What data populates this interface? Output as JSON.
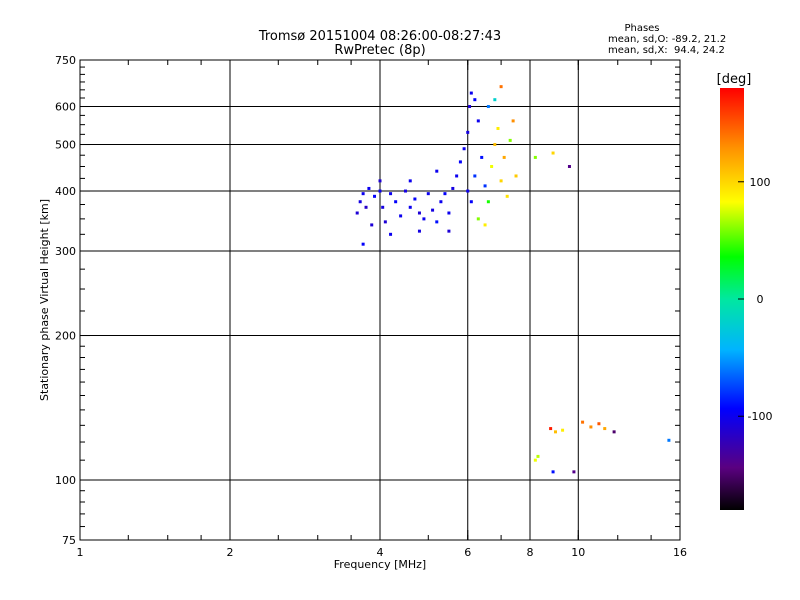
{
  "chart_data": {
    "type": "scatter",
    "title": "Tromsø 20151004 08:26:00-08:27:43",
    "subtitle": "RwPretec (8p)",
    "xlabel": "Frequency [MHz]",
    "ylabel": "Stationary phase Virtual Height [km]",
    "x_scale": "log2",
    "y_scale": "log",
    "xlim": [
      1,
      16
    ],
    "ylim": [
      75,
      750
    ],
    "x_ticks": [
      1,
      2,
      4,
      6,
      8,
      10,
      16
    ],
    "x_tick_labels": [
      "1",
      "2",
      "4",
      "6",
      "8",
      "10",
      "16"
    ],
    "y_ticks": [
      75,
      100,
      200,
      300,
      400,
      500,
      600,
      750
    ],
    "y_tick_labels": [
      "75",
      "100",
      "200",
      "300",
      "400",
      "500",
      "600",
      "750"
    ],
    "grid": true,
    "stats": {
      "heading": "Phases",
      "line_o": "mean, sd,O: -89.2, 21.2",
      "line_x": "mean, sd,X:  94.4, 24.2"
    },
    "colorbar": {
      "label": "[deg]",
      "range": [
        -180,
        180
      ],
      "ticks": [
        100,
        0,
        -100
      ],
      "tick_labels": [
        "100",
        "0",
        "-100"
      ],
      "colormap": "rainbow"
    },
    "series": [
      {
        "points": [
          [
            3.6,
            360,
            -110
          ],
          [
            3.65,
            380,
            -105
          ],
          [
            3.7,
            395,
            -100
          ],
          [
            3.75,
            370,
            -115
          ],
          [
            3.8,
            405,
            -100
          ],
          [
            3.85,
            340,
            -110
          ],
          [
            3.9,
            390,
            -95
          ],
          [
            4.0,
            400,
            -100
          ],
          [
            4.05,
            370,
            -105
          ],
          [
            4.1,
            345,
            -110
          ],
          [
            4.2,
            395,
            -100
          ],
          [
            4.3,
            380,
            -95
          ],
          [
            4.4,
            355,
            -100
          ],
          [
            4.5,
            400,
            -105
          ],
          [
            4.6,
            370,
            -100
          ],
          [
            4.7,
            385,
            -95
          ],
          [
            4.8,
            360,
            -110
          ],
          [
            4.9,
            350,
            -100
          ],
          [
            5.0,
            395,
            -100
          ],
          [
            5.1,
            365,
            -105
          ],
          [
            5.2,
            345,
            -90
          ],
          [
            5.3,
            380,
            -100
          ],
          [
            5.4,
            395,
            -95
          ],
          [
            5.5,
            360,
            -100
          ],
          [
            5.6,
            405,
            -105
          ],
          [
            5.7,
            430,
            -100
          ],
          [
            5.8,
            460,
            -95
          ],
          [
            5.9,
            490,
            -100
          ],
          [
            6.0,
            530,
            -105
          ],
          [
            6.05,
            600,
            -110
          ],
          [
            6.1,
            640,
            -100
          ],
          [
            6.2,
            620,
            -95
          ],
          [
            6.3,
            560,
            -100
          ],
          [
            6.4,
            470,
            -90
          ],
          [
            6.5,
            410,
            -80
          ],
          [
            6.6,
            380,
            40
          ],
          [
            6.7,
            450,
            80
          ],
          [
            6.8,
            500,
            110
          ],
          [
            6.9,
            540,
            90
          ],
          [
            7.0,
            420,
            100
          ],
          [
            7.1,
            470,
            120
          ],
          [
            7.2,
            390,
            95
          ],
          [
            7.3,
            510,
            60
          ],
          [
            7.4,
            560,
            130
          ],
          [
            7.5,
            430,
            105
          ],
          [
            6.0,
            400,
            -100
          ],
          [
            6.1,
            380,
            -95
          ],
          [
            6.2,
            430,
            -80
          ],
          [
            6.3,
            350,
            60
          ],
          [
            6.5,
            340,
            90
          ],
          [
            6.6,
            600,
            -60
          ],
          [
            6.8,
            620,
            -20
          ],
          [
            7.0,
            660,
            140
          ],
          [
            5.5,
            330,
            -110
          ],
          [
            4.8,
            330,
            -105
          ],
          [
            4.2,
            325,
            -100
          ],
          [
            3.7,
            310,
            -95
          ],
          [
            4.0,
            420,
            -110
          ],
          [
            4.6,
            420,
            -100
          ],
          [
            5.2,
            440,
            -100
          ],
          [
            8.2,
            470,
            60
          ],
          [
            8.9,
            480,
            100
          ],
          [
            9.6,
            450,
            -140
          ],
          [
            8.8,
            128,
            170
          ],
          [
            9.0,
            126,
            110
          ],
          [
            9.3,
            127,
            90
          ],
          [
            10.2,
            132,
            140
          ],
          [
            10.6,
            129,
            130
          ],
          [
            11.0,
            131,
            150
          ],
          [
            11.3,
            128,
            120
          ],
          [
            11.8,
            126,
            -150
          ],
          [
            8.2,
            110,
            80
          ],
          [
            8.3,
            112,
            70
          ],
          [
            8.9,
            104,
            -90
          ],
          [
            9.8,
            104,
            -140
          ],
          [
            15.2,
            121,
            -60
          ]
        ]
      }
    ]
  }
}
